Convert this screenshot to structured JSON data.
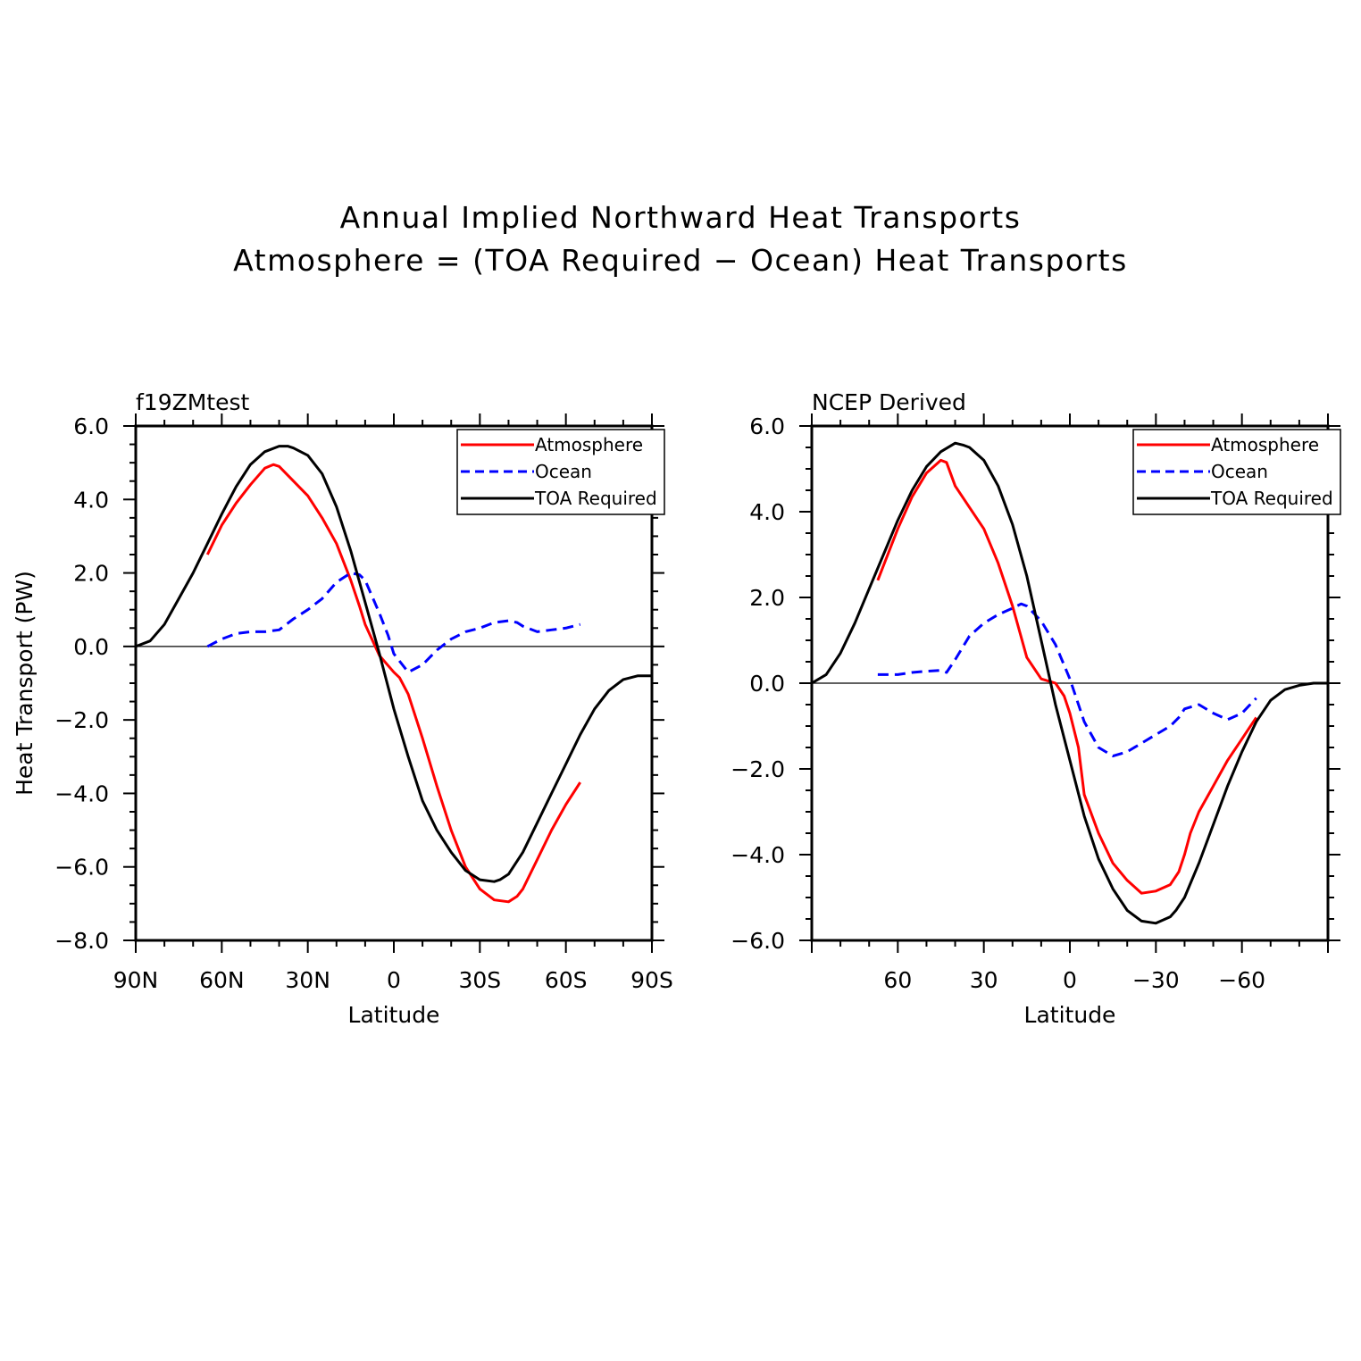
{
  "title_lines": [
    "Annual Implied Northward Heat Transports",
    "Atmosphere = (TOA Required − Ocean) Heat Transports"
  ],
  "chart_data": [
    {
      "type": "line",
      "panel_title": "f19ZMtest",
      "xlabel": "Latitude",
      "ylabel": "Heat Transport (PW)",
      "xlim": [
        90,
        -90
      ],
      "ylim": [
        -8.0,
        6.0
      ],
      "xticks": [
        {
          "value": 90,
          "label": "90N"
        },
        {
          "value": 60,
          "label": "60N"
        },
        {
          "value": 30,
          "label": "30N"
        },
        {
          "value": 0,
          "label": "0"
        },
        {
          "value": -30,
          "label": "30S"
        },
        {
          "value": -60,
          "label": "60S"
        },
        {
          "value": -90,
          "label": "90S"
        }
      ],
      "yticks": [
        {
          "value": 6,
          "label": "6.0"
        },
        {
          "value": 4,
          "label": "4.0"
        },
        {
          "value": 2,
          "label": "2.0"
        },
        {
          "value": 0,
          "label": "0.0"
        },
        {
          "value": -2,
          "label": "−2.0"
        },
        {
          "value": -4,
          "label": "−4.0"
        },
        {
          "value": -6,
          "label": "−6.0"
        },
        {
          "value": -8,
          "label": "−8.0"
        }
      ],
      "zero_line": true,
      "legend_position": "top-right",
      "series": [
        {
          "name": "Atmosphere",
          "color": "#ff0000",
          "dash": "solid",
          "x": [
            65,
            60,
            55,
            50,
            45,
            42,
            40,
            35,
            30,
            25,
            20,
            15,
            12,
            10,
            5,
            0,
            -2,
            -5,
            -10,
            -15,
            -20,
            -25,
            -30,
            -35,
            -40,
            -43,
            -45,
            -50,
            -55,
            -60,
            -65
          ],
          "y": [
            2.5,
            3.3,
            3.9,
            4.4,
            4.85,
            4.95,
            4.9,
            4.5,
            4.1,
            3.5,
            2.8,
            1.8,
            1.1,
            0.6,
            -0.25,
            -0.7,
            -0.85,
            -1.3,
            -2.5,
            -3.8,
            -5.0,
            -6.0,
            -6.6,
            -6.9,
            -6.95,
            -6.8,
            -6.6,
            -5.8,
            -5.0,
            -4.3,
            -3.7
          ]
        },
        {
          "name": "Ocean",
          "color": "#0000ff",
          "dash": "dashed",
          "x": [
            65,
            60,
            55,
            50,
            45,
            40,
            35,
            30,
            25,
            20,
            15,
            12,
            10,
            5,
            2,
            0,
            -5,
            -10,
            -15,
            -20,
            -25,
            -30,
            -35,
            -40,
            -43,
            -45,
            -50,
            -55,
            -60,
            -65
          ],
          "y": [
            0.0,
            0.2,
            0.35,
            0.4,
            0.4,
            0.45,
            0.75,
            1.0,
            1.3,
            1.75,
            2.0,
            1.95,
            1.8,
            0.9,
            0.3,
            -0.2,
            -0.7,
            -0.5,
            -0.1,
            0.2,
            0.4,
            0.5,
            0.65,
            0.7,
            0.65,
            0.55,
            0.4,
            0.45,
            0.5,
            0.6
          ]
        },
        {
          "name": "TOA Required",
          "color": "#000000",
          "dash": "solid",
          "x": [
            90,
            85,
            80,
            75,
            70,
            65,
            60,
            55,
            50,
            45,
            40,
            37,
            35,
            30,
            25,
            20,
            15,
            10,
            5,
            0,
            -5,
            -10,
            -15,
            -20,
            -25,
            -30,
            -35,
            -37,
            -40,
            -45,
            -50,
            -55,
            -60,
            -65,
            -70,
            -75,
            -80,
            -85,
            -90
          ],
          "y": [
            0.0,
            0.15,
            0.6,
            1.3,
            2.0,
            2.8,
            3.6,
            4.35,
            4.95,
            5.3,
            5.45,
            5.45,
            5.4,
            5.2,
            4.7,
            3.8,
            2.6,
            1.2,
            -0.2,
            -1.7,
            -3.0,
            -4.2,
            -5.0,
            -5.6,
            -6.1,
            -6.35,
            -6.4,
            -6.35,
            -6.2,
            -5.6,
            -4.8,
            -4.0,
            -3.2,
            -2.4,
            -1.7,
            -1.2,
            -0.9,
            -0.8,
            -0.8
          ]
        }
      ]
    },
    {
      "type": "line",
      "panel_title": "NCEP Derived",
      "xlabel": "Latitude",
      "ylabel": "",
      "xlim": [
        90,
        -90
      ],
      "ylim": [
        -6.0,
        6.0
      ],
      "xticks": [
        {
          "value": 60,
          "label": "60"
        },
        {
          "value": 30,
          "label": "30"
        },
        {
          "value": 0,
          "label": "0"
        },
        {
          "value": -30,
          "label": "−30"
        },
        {
          "value": -60,
          "label": "−60"
        }
      ],
      "yticks": [
        {
          "value": 6,
          "label": "6.0"
        },
        {
          "value": 4,
          "label": "4.0"
        },
        {
          "value": 2,
          "label": "2.0"
        },
        {
          "value": 0,
          "label": "0.0"
        },
        {
          "value": -2,
          "label": "−2.0"
        },
        {
          "value": -4,
          "label": "−4.0"
        },
        {
          "value": -6,
          "label": "−6.0"
        }
      ],
      "zero_line": true,
      "legend_position": "top-right",
      "series": [
        {
          "name": "Atmosphere",
          "color": "#ff0000",
          "dash": "solid",
          "x": [
            67,
            60,
            55,
            50,
            45,
            43,
            40,
            35,
            30,
            25,
            20,
            15,
            10,
            5,
            2,
            0,
            -3,
            -5,
            -10,
            -15,
            -20,
            -25,
            -30,
            -35,
            -38,
            -40,
            -42,
            -45,
            -50,
            -55,
            -60,
            -65
          ],
          "y": [
            2.4,
            3.6,
            4.35,
            4.9,
            5.2,
            5.15,
            4.6,
            4.1,
            3.6,
            2.8,
            1.8,
            0.6,
            0.1,
            0.0,
            -0.3,
            -0.7,
            -1.5,
            -2.6,
            -3.5,
            -4.2,
            -4.6,
            -4.9,
            -4.85,
            -4.7,
            -4.4,
            -4.0,
            -3.5,
            -3.0,
            -2.4,
            -1.8,
            -1.3,
            -0.8
          ]
        },
        {
          "name": "Ocean",
          "color": "#0000ff",
          "dash": "dashed",
          "x": [
            67,
            60,
            55,
            50,
            45,
            43,
            40,
            35,
            30,
            25,
            20,
            17,
            15,
            10,
            5,
            0,
            -5,
            -10,
            -15,
            -20,
            -25,
            -30,
            -35,
            -38,
            -40,
            -45,
            -50,
            -55,
            -60,
            -65
          ],
          "y": [
            0.2,
            0.2,
            0.25,
            0.28,
            0.3,
            0.25,
            0.55,
            1.1,
            1.4,
            1.6,
            1.75,
            1.85,
            1.8,
            1.45,
            0.9,
            0.1,
            -0.9,
            -1.5,
            -1.7,
            -1.6,
            -1.4,
            -1.2,
            -1.0,
            -0.8,
            -0.6,
            -0.5,
            -0.7,
            -0.85,
            -0.7,
            -0.35
          ]
        },
        {
          "name": "TOA Required",
          "color": "#000000",
          "dash": "solid",
          "x": [
            90,
            85,
            80,
            75,
            70,
            65,
            60,
            55,
            50,
            45,
            40,
            37,
            35,
            30,
            25,
            20,
            15,
            10,
            5,
            0,
            -5,
            -10,
            -15,
            -20,
            -25,
            -30,
            -35,
            -37,
            -40,
            -45,
            -50,
            -55,
            -60,
            -65,
            -70,
            -75,
            -80,
            -85,
            -90
          ],
          "y": [
            0.0,
            0.2,
            0.7,
            1.4,
            2.2,
            3.0,
            3.8,
            4.5,
            5.05,
            5.4,
            5.6,
            5.55,
            5.5,
            5.2,
            4.6,
            3.7,
            2.5,
            1.0,
            -0.5,
            -1.8,
            -3.1,
            -4.1,
            -4.8,
            -5.3,
            -5.55,
            -5.6,
            -5.45,
            -5.3,
            -5.0,
            -4.2,
            -3.3,
            -2.4,
            -1.6,
            -0.9,
            -0.4,
            -0.15,
            -0.05,
            0.0,
            0.0
          ]
        }
      ]
    }
  ]
}
